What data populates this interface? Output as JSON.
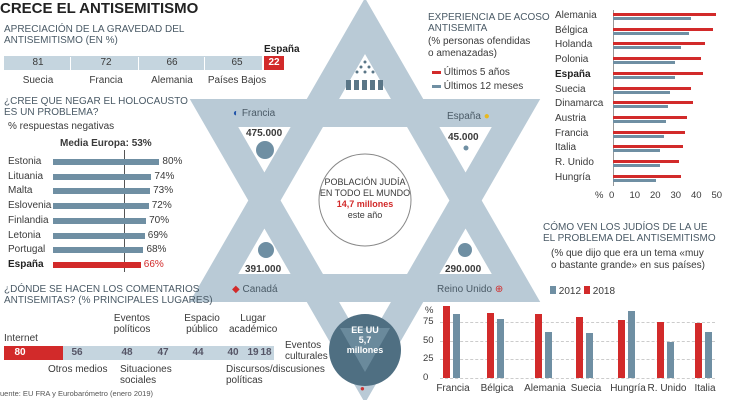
{
  "title": "CRECE EL ANTISEMITISMO",
  "colors": {
    "red": "#d22a2a",
    "blue": "#6f8fa3",
    "light": "#c5d5df",
    "star": "#b9cad6",
    "dark": "#4f6f82"
  },
  "gravedad": {
    "title1": "APRECIACIÓN DE LA GRAVEDAD DEL",
    "title2": "ANTISEMITISMO (en %)",
    "spain_label": "España",
    "items": [
      {
        "label": "Suecia",
        "value": "81"
      },
      {
        "label": "Francia",
        "value": "72"
      },
      {
        "label": "Alemania",
        "value": "66"
      },
      {
        "label": "Países Bajos",
        "value": "65"
      }
    ],
    "spain_value": "22"
  },
  "holocausto": {
    "title1": "¿CREE QUE NEGAR EL HOLOCAUSTO",
    "title2": "ES UN PROBLEMA?",
    "subtitle": "% respuestas negativas",
    "media_label": "Media Europa:",
    "media_value": "53%"
  },
  "comentarios": {
    "title1": "¿DÓNDE SE HACEN LOS COMENTARIOS",
    "title2": "ANTISEMITAS? (% principales lugares)",
    "items": [
      {
        "label": "Internet",
        "value": "80"
      },
      {
        "label": "Otros medios",
        "value": "56"
      },
      {
        "label": "Eventos políticos",
        "value": "48"
      },
      {
        "label": "Situaciones sociales",
        "value": "47"
      },
      {
        "label": "Espacio público",
        "value": "44"
      },
      {
        "label": "Discursos/discusiones políticas",
        "value": "40"
      },
      {
        "label": "Lugar académico",
        "value": "19"
      },
      {
        "label": "Eventos culturales",
        "value": "18"
      }
    ]
  },
  "source": "uente: EU FRA y Eurobarómetro (enero 2019)",
  "star": {
    "center_title1": "POBLACIÓN JUDÍA",
    "center_title2": "EN TODO EL MUNDO",
    "center_value": "14,7 millones",
    "center_sub": "este año",
    "francia": {
      "label": "Francia",
      "value": "475.000"
    },
    "espana": {
      "label": "España",
      "value": "45.000"
    },
    "canada": {
      "label": "Canadá",
      "value": "391.000"
    },
    "uk": {
      "label": "Reino Unido",
      "value": "290.000"
    },
    "usa": {
      "label": "EE UU",
      "value": "5,7",
      "unit": "millones"
    }
  },
  "acoso": {
    "title1": "EXPERIENCIA DE ACOSO",
    "title2": "ANTISEMITA",
    "sub1": "(% personas ofendidas",
    "sub2": "o amenazadas)",
    "legend": [
      "Últimos 5 años",
      "Últimos 12 meses"
    ],
    "axis_unit": "%"
  },
  "vision": {
    "title1": "CÓMO VEN LOS JUDÍOS DE LA UE",
    "title2": "EL PROBLEMA DEL ANTISEMITISMO",
    "sub1": "(% que dijo que era un tema «muy",
    "sub2": "o bastante grande» en sus países)",
    "legend": [
      "2012",
      "2018"
    ],
    "axis_unit": "%"
  },
  "chart_data": [
    {
      "type": "bar",
      "title": "¿Cree que negar el Holocausto es un problema? % respuestas negativas",
      "categories": [
        "Estonia",
        "Lituania",
        "Malta",
        "Eslovenia",
        "Finlandia",
        "Letonia",
        "Portugal",
        "España"
      ],
      "values": [
        80,
        74,
        73,
        72,
        70,
        69,
        68,
        66
      ],
      "labels": [
        "80%",
        "74%",
        "73%",
        "72%",
        "70%",
        "69%",
        "68%",
        "66%"
      ],
      "reference": 53
    },
    {
      "type": "bar",
      "title": "Experiencia de acoso antisemita",
      "categories": [
        "Alemania",
        "Bélgica",
        "Holanda",
        "Polonia",
        "España",
        "Suecia",
        "Dinamarca",
        "Austria",
        "Francia",
        "Italia",
        "R. Unido",
        "Hungría"
      ],
      "series": [
        {
          "name": "Últimos 5 años",
          "values": [
            50,
            49,
            45,
            43,
            44,
            38,
            39,
            36,
            35,
            34,
            32,
            33
          ]
        },
        {
          "name": "Últimos 12 meses",
          "values": [
            38,
            37,
            33,
            30,
            30,
            28,
            27,
            26,
            25,
            23,
            23,
            21
          ]
        }
      ],
      "xlim": [
        0,
        50
      ],
      "ticks": [
        "0",
        "10",
        "20",
        "30",
        "40",
        "50"
      ]
    },
    {
      "type": "bar",
      "title": "Cómo ven los judíos de la UE el problema del antisemitismo",
      "categories": [
        "Francia",
        "Bélgica",
        "Alemania",
        "Suecia",
        "Hungría",
        "R. Unido",
        "Italia"
      ],
      "series": [
        {
          "name": "2012",
          "values": [
            86,
            79,
            62,
            60,
            90,
            48,
            61
          ]
        },
        {
          "name": "2018",
          "values": [
            96,
            87,
            86,
            82,
            78,
            75,
            74
          ]
        }
      ],
      "ylim": [
        0,
        100
      ],
      "ticks": [
        "0",
        "25",
        "50",
        "75"
      ]
    }
  ]
}
